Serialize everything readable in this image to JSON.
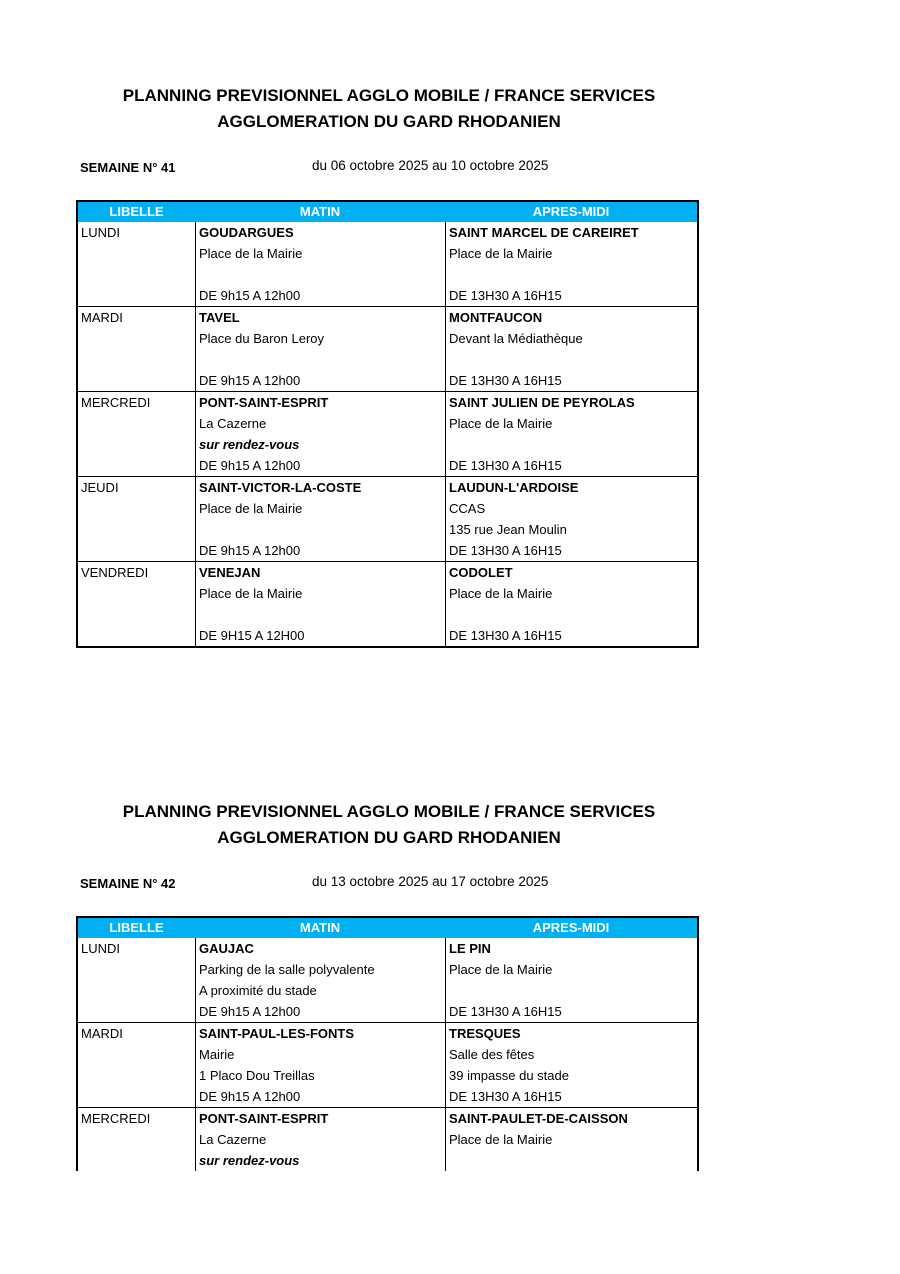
{
  "headers": {
    "libelle": "LIBELLE",
    "matin": "MATIN",
    "apres_midi": "APRES-MIDI"
  },
  "colors": {
    "header_bg": "#00b0f0",
    "header_text": "#ffffff"
  },
  "weeks": [
    {
      "title1": "PLANNING PREVISIONNEL AGGLO MOBILE / FRANCE SERVICES",
      "title2": "AGGLOMERATION DU GARD RHODANIEN",
      "week": "SEMAINE N° 41",
      "range": "du 06 octobre 2025 au 10 octobre 2025",
      "rows": [
        {
          "day": "LUNDI",
          "matin": [
            "GOUDARGUES",
            "Place de la Mairie",
            "",
            "DE 9h15 A 12h00"
          ],
          "apres": [
            "SAINT MARCEL DE CAREIRET",
            "Place de la Mairie",
            "",
            "DE 13H30 A 16H15"
          ]
        },
        {
          "day": "MARDI",
          "matin": [
            "TAVEL",
            "Place du Baron Leroy",
            "",
            "DE 9h15 A 12h00"
          ],
          "apres": [
            "MONTFAUCON",
            "Devant la Médiathèque",
            "",
            "DE 13H30 A 16H15"
          ]
        },
        {
          "day": "MERCREDI",
          "matin": [
            "PONT-SAINT-ESPRIT",
            "La Cazerne",
            "sur rendez-vous",
            "DE 9h15 A 12h00"
          ],
          "apres": [
            "SAINT JULIEN DE PEYROLAS",
            "Place de la Mairie",
            "",
            "DE 13H30 A 16H15"
          ]
        },
        {
          "day": "JEUDI",
          "matin": [
            "SAINT-VICTOR-LA-COSTE",
            "Place de la Mairie",
            "",
            "DE 9h15 A 12h00"
          ],
          "apres": [
            "LAUDUN-L'ARDOISE",
            "CCAS",
            "135 rue Jean Moulin",
            "DE 13H30 A 16H15"
          ]
        },
        {
          "day": "VENDREDI",
          "matin": [
            "VENEJAN",
            "Place de la Mairie",
            "",
            "DE 9H15 A 12H00"
          ],
          "apres": [
            "CODOLET",
            "Place de la Mairie",
            "",
            "DE 13H30 A 16H15"
          ]
        }
      ]
    },
    {
      "title1": "PLANNING PREVISIONNEL AGGLO MOBILE / FRANCE SERVICES",
      "title2": "AGGLOMERATION DU GARD RHODANIEN",
      "week": "SEMAINE N° 42",
      "range": "du 13 octobre 2025 au 17 octobre 2025",
      "rows": [
        {
          "day": "LUNDI",
          "matin": [
            "GAUJAC",
            "Parking de la salle polyvalente",
            "A proximité du stade",
            "DE 9h15 A 12h00"
          ],
          "apres": [
            "LE PIN",
            "Place de la Mairie",
            "",
            "DE 13H30 A 16H15"
          ]
        },
        {
          "day": "MARDI",
          "matin": [
            "SAINT-PAUL-LES-FONTS",
            "Mairie",
            "1 Placo Dou Treillas",
            "DE 9h15 A 12h00"
          ],
          "apres": [
            "TRESQUES",
            "Salle des fêtes",
            "39 impasse du stade",
            "DE 13H30 A 16H15"
          ]
        },
        {
          "day": "MERCREDI",
          "matin": [
            "PONT-SAINT-ESPRIT",
            "La Cazerne",
            "sur rendez-vous"
          ],
          "apres": [
            "SAINT-PAULET-DE-CAISSON",
            "Place de la Mairie",
            ""
          ]
        }
      ]
    }
  ]
}
